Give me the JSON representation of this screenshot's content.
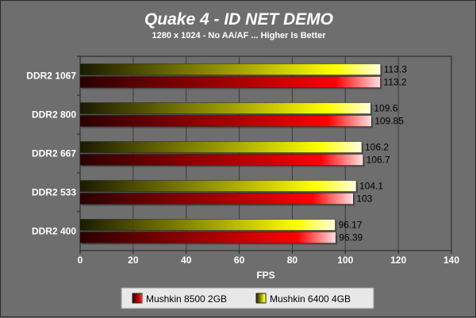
{
  "chart_data": {
    "type": "bar",
    "orientation": "horizontal",
    "title": "Quake 4 - ID NET DEMO",
    "subtitle": "1280 x 1024  -  No AA/AF ... Higher Is Better",
    "xlabel": "FPS",
    "ylabel": "",
    "xlim": [
      0,
      140
    ],
    "x_ticks": [
      0,
      20,
      40,
      60,
      80,
      100,
      120,
      140
    ],
    "grid": true,
    "legend_position": "bottom",
    "categories": [
      "DDR2 1067",
      "DDR2 800",
      "DDR2 667",
      "DDR2 533",
      "DDR2 400"
    ],
    "series": [
      {
        "name": "Mushkin 6400 4GB",
        "color": "#ffff00",
        "values": [
          113.3,
          109.6,
          106.2,
          104.1,
          96.17
        ],
        "value_labels": [
          "113.3",
          "109.6",
          "106.2",
          "104.1",
          "96.17"
        ]
      },
      {
        "name": "Mushkin 8500 2GB",
        "color": "#ff0000",
        "values": [
          113.2,
          109.85,
          106.7,
          103,
          96.39
        ],
        "value_labels": [
          "113.2",
          "109.85",
          "106.7",
          "103",
          "96.39"
        ]
      }
    ],
    "legend_order": [
      "Mushkin 8500 2GB",
      "Mushkin 6400 4GB"
    ]
  }
}
